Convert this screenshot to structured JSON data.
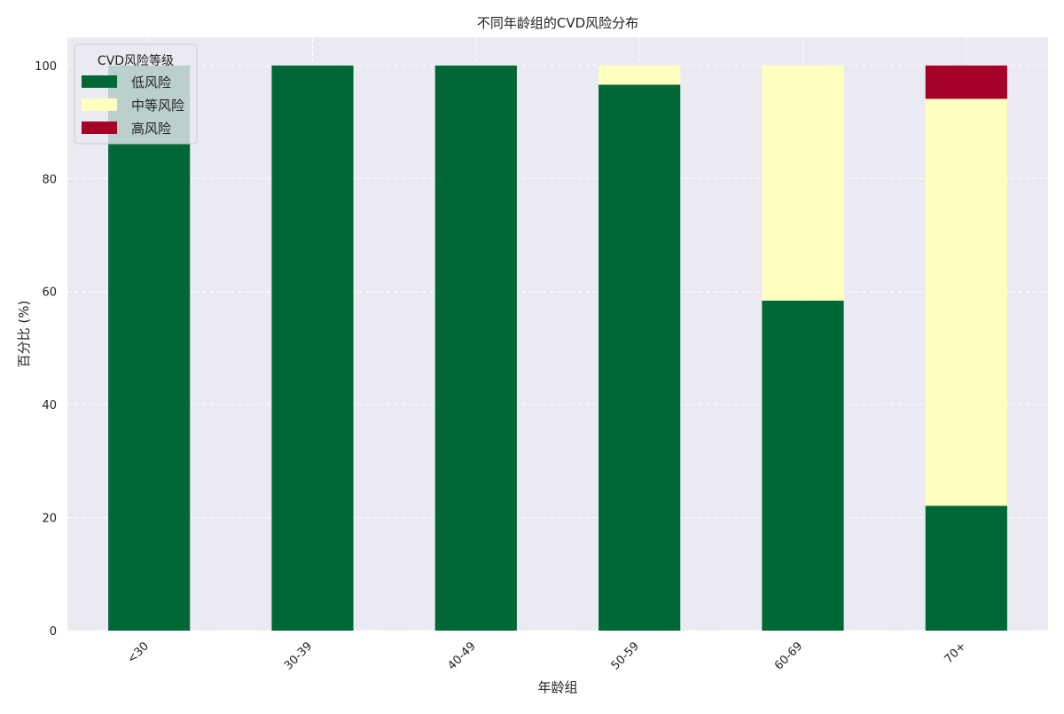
{
  "chart_data": {
    "type": "bar",
    "stacked": true,
    "title": "不同年龄组的CVD风险分布",
    "xlabel": "年龄组",
    "ylabel": "百分比 (%)",
    "categories": [
      "<30",
      "30-39",
      "40-49",
      "50-59",
      "60-69",
      "70+"
    ],
    "series": [
      {
        "name": "低风险",
        "color": "#006837",
        "values": [
          100,
          100,
          100,
          96.6,
          58.4,
          22.1
        ]
      },
      {
        "name": "中等风险",
        "color": "#FFFFC0",
        "values": [
          0,
          0,
          0,
          3.4,
          41.6,
          72.0
        ]
      },
      {
        "name": "高风险",
        "color": "#A50026",
        "values": [
          0,
          0,
          0,
          0,
          0,
          5.9
        ]
      }
    ],
    "ylim": [
      0,
      105
    ],
    "yticks": [
      0,
      20,
      40,
      60,
      80,
      100
    ],
    "grid": true,
    "legend": {
      "title": "CVD风险等级",
      "position": "top-left"
    },
    "background": "#EAEAF2"
  }
}
